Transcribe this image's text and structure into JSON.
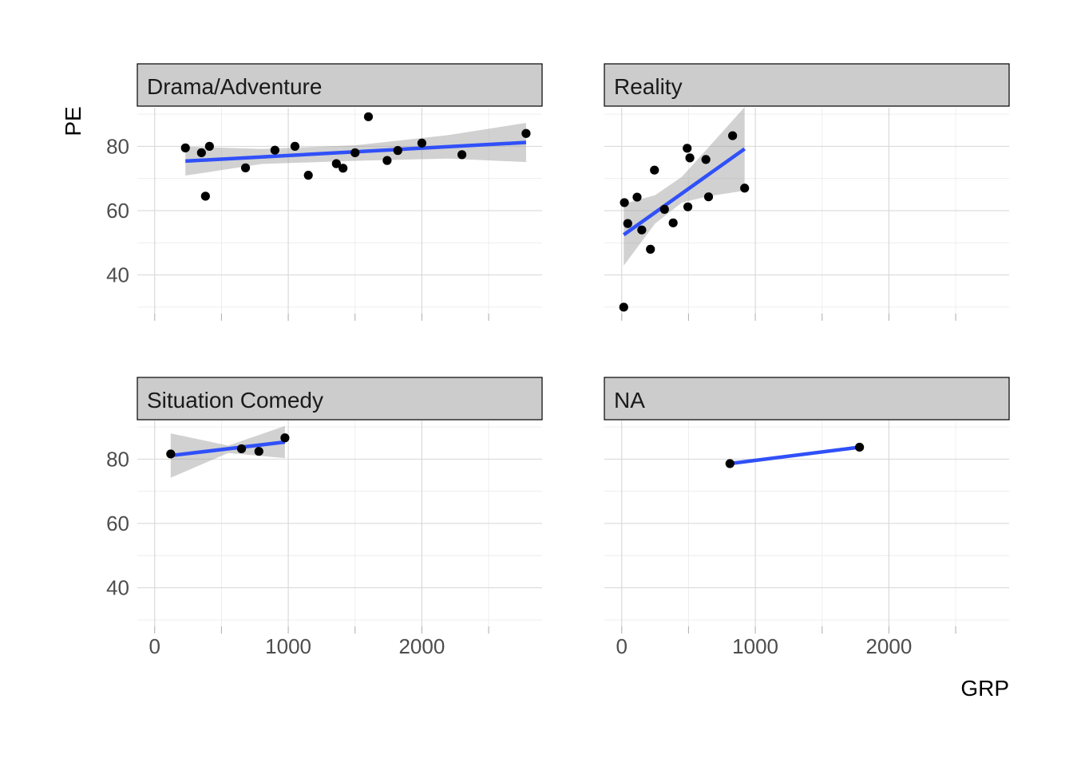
{
  "chart_data": {
    "type": "scatter",
    "xlabel": "GRP",
    "ylabel": "PE",
    "xlim": [
      -130,
      2900
    ],
    "ylim": [
      28,
      92
    ],
    "x_ticks": [
      0,
      1000,
      2000
    ],
    "y_ticks": [
      40,
      60,
      80
    ],
    "panels": [
      {
        "name": "Drama/Adventure",
        "points": [
          {
            "x": 230,
            "y": 79.5
          },
          {
            "x": 350,
            "y": 78
          },
          {
            "x": 380,
            "y": 64.5
          },
          {
            "x": 410,
            "y": 80
          },
          {
            "x": 680,
            "y": 73.3
          },
          {
            "x": 900,
            "y": 78.8
          },
          {
            "x": 1050,
            "y": 80
          },
          {
            "x": 1150,
            "y": 71
          },
          {
            "x": 1360,
            "y": 74.6
          },
          {
            "x": 1410,
            "y": 73.2
          },
          {
            "x": 1500,
            "y": 78
          },
          {
            "x": 1600,
            "y": 89.2
          },
          {
            "x": 1740,
            "y": 75.6
          },
          {
            "x": 1820,
            "y": 78.7
          },
          {
            "x": 2000,
            "y": 81
          },
          {
            "x": 2300,
            "y": 77.4
          },
          {
            "x": 2780,
            "y": 84
          }
        ],
        "fit": {
          "x": [
            230,
            2780
          ],
          "y": [
            75.4,
            81.2
          ]
        },
        "band": {
          "x": [
            230,
            800,
            1500,
            2200,
            2780
          ],
          "upper": [
            79.9,
            79.2,
            80.3,
            83.5,
            87.3
          ],
          "lower": [
            70.9,
            74.5,
            75.5,
            76.2,
            75.1
          ]
        }
      },
      {
        "name": "Reality",
        "points": [
          {
            "x": 15,
            "y": 30
          },
          {
            "x": 20,
            "y": 62.5
          },
          {
            "x": 45,
            "y": 56
          },
          {
            "x": 115,
            "y": 64.2
          },
          {
            "x": 150,
            "y": 54
          },
          {
            "x": 215,
            "y": 48
          },
          {
            "x": 245,
            "y": 72.6
          },
          {
            "x": 320,
            "y": 60.4
          },
          {
            "x": 385,
            "y": 56.2
          },
          {
            "x": 490,
            "y": 79.4
          },
          {
            "x": 495,
            "y": 61.2
          },
          {
            "x": 510,
            "y": 76.4
          },
          {
            "x": 630,
            "y": 75.9
          },
          {
            "x": 650,
            "y": 64.3
          },
          {
            "x": 830,
            "y": 83.3
          },
          {
            "x": 920,
            "y": 67
          }
        ],
        "fit": {
          "x": [
            15,
            920
          ],
          "y": [
            52.5,
            79.2
          ]
        },
        "band": {
          "x": [
            15,
            250,
            450,
            650,
            920
          ],
          "upper": [
            62.1,
            64.8,
            70.5,
            79.7,
            92.2
          ],
          "lower": [
            42.9,
            56,
            62.5,
            64.5,
            66.2
          ]
        }
      },
      {
        "name": "Situation Comedy",
        "points": [
          {
            "x": 120,
            "y": 81.6
          },
          {
            "x": 650,
            "y": 83.2
          },
          {
            "x": 780,
            "y": 82.4
          },
          {
            "x": 975,
            "y": 86.6
          }
        ],
        "fit": {
          "x": [
            120,
            975
          ],
          "y": [
            81.1,
            85.3
          ]
        },
        "band": {
          "x": [
            120,
            550,
            975
          ],
          "upper": [
            88,
            84.2,
            90.3
          ],
          "lower": [
            74.2,
            81.9,
            80.3
          ]
        }
      },
      {
        "name": "NA",
        "points": [
          {
            "x": 810,
            "y": 78.6
          },
          {
            "x": 1780,
            "y": 83.7
          }
        ],
        "fit": {
          "x": [
            810,
            1780
          ],
          "y": [
            78.6,
            83.7
          ]
        },
        "band": null
      }
    ]
  }
}
